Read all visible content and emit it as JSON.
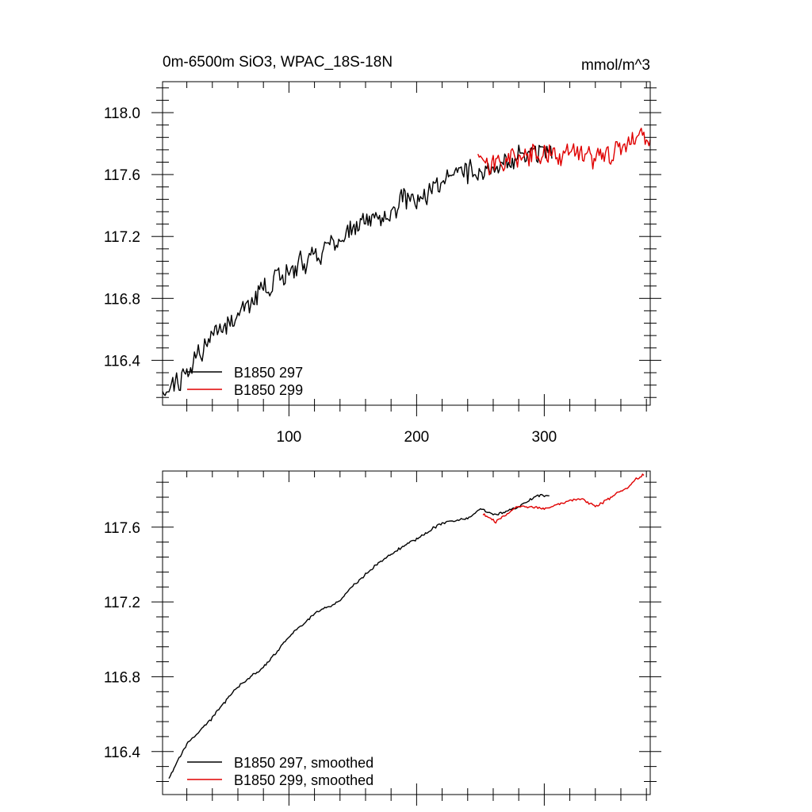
{
  "chart_data": [
    {
      "type": "line",
      "title": "0m-6500m SiO3, WPAC_18S-18N",
      "units": "mmol/m^3",
      "xlim": [
        1,
        383
      ],
      "ylim": [
        116.11,
        118.2
      ],
      "x_ticks": [
        100,
        200,
        300
      ],
      "y_ticks": [
        116.4,
        116.8,
        117.2,
        117.6,
        118.0
      ],
      "y_tick_labels": [
        "116.4",
        "116.8",
        "117.2",
        "117.6",
        "118.0"
      ],
      "x_tick_labels": [
        "100",
        "200",
        "300"
      ],
      "legend_position": "bottom-left",
      "series": [
        {
          "name": "B1850 297",
          "color": "#000000",
          "x_range": [
            1,
            306
          ],
          "noise": 0.06,
          "trend": [
            [
              1,
              116.17
            ],
            [
              20,
              116.33
            ],
            [
              40,
              116.55
            ],
            [
              60,
              116.73
            ],
            [
              80,
              116.86
            ],
            [
              100,
              116.98
            ],
            [
              120,
              117.08
            ],
            [
              140,
              117.18
            ],
            [
              160,
              117.3
            ],
            [
              180,
              117.4
            ],
            [
              200,
              117.46
            ],
            [
              220,
              117.55
            ],
            [
              240,
              117.62
            ],
            [
              260,
              117.66
            ],
            [
              280,
              117.72
            ],
            [
              300,
              117.76
            ],
            [
              306,
              117.78
            ]
          ]
        },
        {
          "name": "B1850 299",
          "color": "#e00000",
          "x_range": [
            248,
            383
          ],
          "noise": 0.06,
          "trend": [
            [
              248,
              117.72
            ],
            [
              260,
              117.63
            ],
            [
              280,
              117.71
            ],
            [
              300,
              117.72
            ],
            [
              320,
              117.74
            ],
            [
              340,
              117.72
            ],
            [
              360,
              117.76
            ],
            [
              375,
              117.86
            ],
            [
              383,
              117.8
            ]
          ]
        }
      ]
    },
    {
      "type": "line",
      "xlim": [
        1,
        383
      ],
      "ylim": [
        116.17,
        117.9
      ],
      "x_ticks": [
        100,
        200,
        300
      ],
      "y_ticks": [
        116.4,
        116.8,
        117.2,
        117.6
      ],
      "y_tick_labels": [
        "116.4",
        "116.8",
        "117.2",
        "117.6"
      ],
      "legend_position": "bottom-left",
      "series": [
        {
          "name": "B1850 297, smoothed",
          "color": "#000000",
          "x_range": [
            6,
            304
          ],
          "noise": 0.006,
          "trend": [
            [
              6,
              116.26
            ],
            [
              20,
              116.44
            ],
            [
              40,
              116.58
            ],
            [
              60,
              116.75
            ],
            [
              80,
              116.85
            ],
            [
              100,
              117.01
            ],
            [
              120,
              117.14
            ],
            [
              140,
              117.21
            ],
            [
              160,
              117.35
            ],
            [
              180,
              117.46
            ],
            [
              200,
              117.54
            ],
            [
              220,
              117.62
            ],
            [
              240,
              117.65
            ],
            [
              250,
              117.7
            ],
            [
              260,
              117.66
            ],
            [
              280,
              117.71
            ],
            [
              295,
              117.77
            ],
            [
              304,
              117.77
            ]
          ]
        },
        {
          "name": "B1850 299, smoothed",
          "color": "#e00000",
          "x_range": [
            252,
            378
          ],
          "noise": 0.006,
          "trend": [
            [
              252,
              117.67
            ],
            [
              262,
              117.63
            ],
            [
              280,
              117.71
            ],
            [
              300,
              117.7
            ],
            [
              315,
              117.73
            ],
            [
              330,
              117.75
            ],
            [
              340,
              117.71
            ],
            [
              355,
              117.77
            ],
            [
              365,
              117.81
            ],
            [
              372,
              117.86
            ],
            [
              378,
              117.88
            ]
          ]
        }
      ]
    }
  ]
}
